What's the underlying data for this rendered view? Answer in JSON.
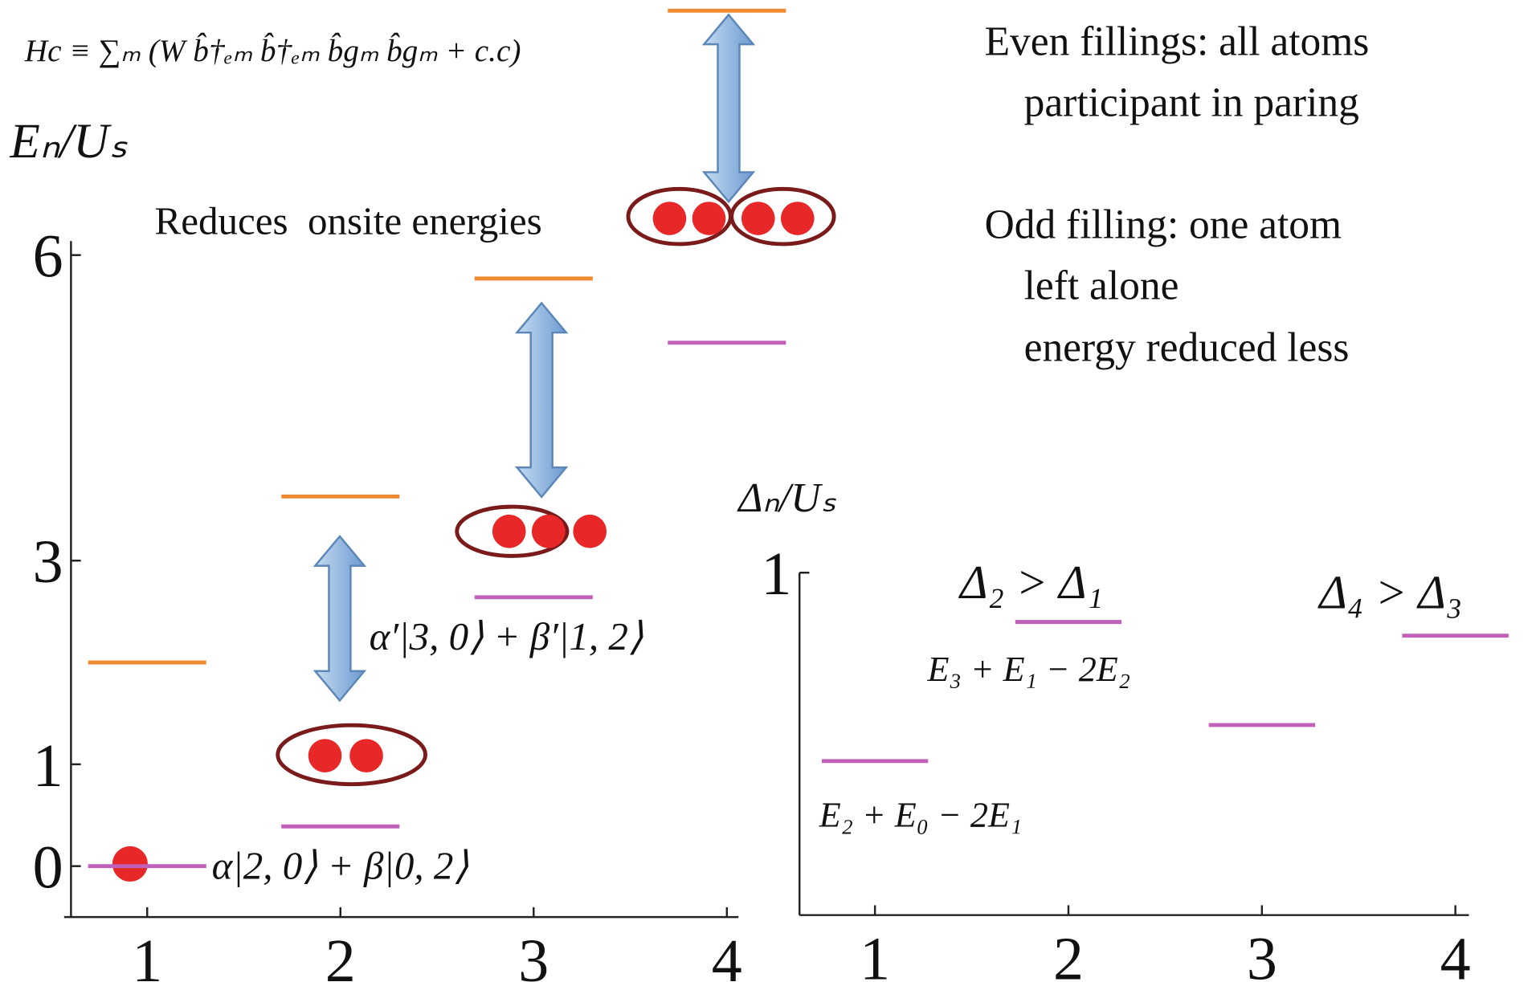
{
  "chart_data": [
    {
      "type": "level",
      "ylabel": "Eₙ/Uₛ",
      "x": [
        1,
        2,
        3,
        4
      ],
      "series": [
        {
          "color": "#f08a30",
          "values": [
            2.0,
            3.63,
            5.77,
            8.4
          ]
        },
        {
          "color": "#c060b8",
          "values": [
            0,
            0.39,
            2.64,
            5.14
          ]
        }
      ],
      "xlim": [
        0.57,
        4.06
      ],
      "ylim": [
        -0.5,
        8.5
      ],
      "xticks": [
        1,
        2,
        3,
        4
      ],
      "yticks": [
        0,
        1,
        3,
        6
      ]
    },
    {
      "type": "level",
      "ylabel": "Δₙ/Uₛ",
      "x": [
        1,
        2,
        3,
        4
      ],
      "series": [
        {
          "color": "#c060b8",
          "values": [
            0.45,
            0.856,
            0.555,
            0.816
          ]
        }
      ],
      "xlim": [
        0.61,
        4.07
      ],
      "ylim": [
        0,
        1
      ],
      "xticks": [
        1,
        2,
        3,
        4
      ],
      "yticks": [
        1
      ]
    }
  ],
  "annotations": [
    "Hc ≡ ∑ₘ (W b̂†ₑₘ b̂†ₑₘ b̂gₘ b̂gₘ + c.c)",
    "Reduces  onsite energies",
    "Even fillings: all atoms",
    "participant in paring",
    "Odd filling: one atom",
    "left alone",
    "energy reduced less",
    "α|2, 0⟩ + β|0, 2⟩",
    "α′|3, 0⟩ + β′|1, 2⟩",
    "Δ₂ > Δ₁",
    "Δ₄ > Δ₃",
    "E₃ + E₁ − 2E₂",
    "E₂ + E₀ − 2E₁"
  ]
}
